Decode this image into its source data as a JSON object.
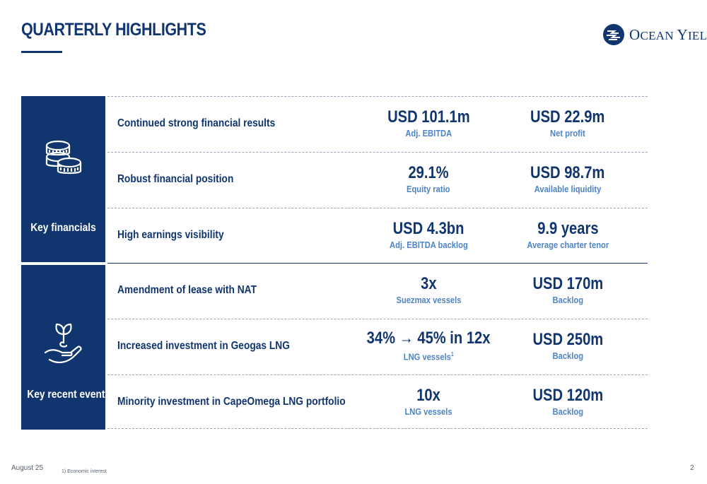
{
  "header": {
    "title": "QUARTERLY HIGHLIGHTS",
    "logo_text_first": "O",
    "logo_text_rest": "CEAN ",
    "logo_text_second": "Y",
    "logo_text_second_rest": "IELD",
    "accent_color": "#10356f",
    "highlight_color": "#4f84c4"
  },
  "sections": [
    {
      "label": "Key financials",
      "icon": "coins-icon",
      "rows": [
        {
          "label": "Continued strong financial results",
          "metric1": {
            "value": "USD 101.1m",
            "sub": "Adj. EBITDA"
          },
          "metric2": {
            "value": "USD 22.9m",
            "sub": "Net profit"
          }
        },
        {
          "label": "Robust financial position",
          "metric1": {
            "value": "29.1%",
            "sub": "Equity ratio"
          },
          "metric2": {
            "value": "USD 98.7m",
            "sub": "Available liquidity"
          }
        },
        {
          "label": "High earnings visibility",
          "metric1": {
            "value": "USD 4.3bn",
            "sub": "Adj. EBITDA backlog"
          },
          "metric2": {
            "value": "9.9 years",
            "sub": "Average charter tenor"
          }
        }
      ]
    },
    {
      "label": "Key recent events",
      "icon": "plant-in-hand-icon",
      "rows": [
        {
          "label": "Amendment of lease with NAT",
          "metric1": {
            "value": "3x",
            "sub": "Suezmax vessels"
          },
          "metric2": {
            "value": "USD 170m",
            "sub": "Backlog"
          }
        },
        {
          "label": "Increased investment in Geogas LNG",
          "metric1": {
            "value": "34% → 45% in 12x",
            "sub": "LNG vessels",
            "sub_sup": "1"
          },
          "metric2": {
            "value": "USD 250m",
            "sub": "Backlog"
          }
        },
        {
          "label": "Minority investment in CapeOmega LNG portfolio",
          "metric1": {
            "value": "10x",
            "sub": "LNG vessels"
          },
          "metric2": {
            "value": "USD 120m",
            "sub": "Backlog"
          }
        }
      ]
    }
  ],
  "footer": {
    "date": "August 25",
    "note": "1) Economic interest",
    "page": "2"
  }
}
